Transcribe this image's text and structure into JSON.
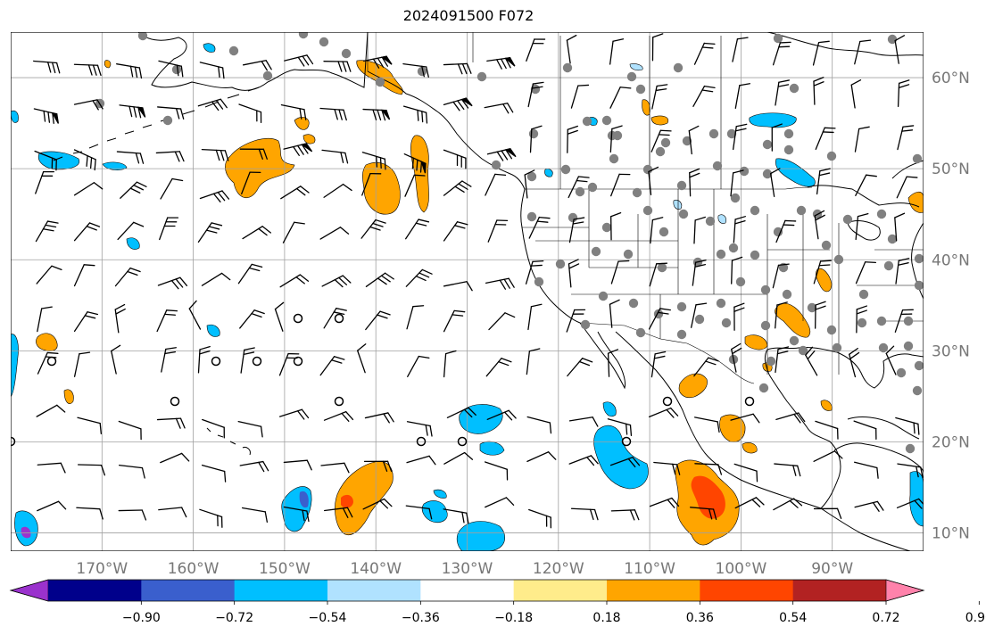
{
  "title": "2024091500 F072",
  "map": {
    "lon_range": [
      -180,
      -80
    ],
    "lat_range": [
      8,
      65
    ],
    "lon_ticks": [
      {
        "value": -170,
        "label": "170°W"
      },
      {
        "value": -160,
        "label": "160°W"
      },
      {
        "value": -150,
        "label": "150°W"
      },
      {
        "value": -140,
        "label": "140°W"
      },
      {
        "value": -130,
        "label": "130°W"
      },
      {
        "value": -120,
        "label": "120°W"
      },
      {
        "value": -110,
        "label": "110°W"
      },
      {
        "value": -100,
        "label": "100°W"
      },
      {
        "value": -90,
        "label": "90°W"
      }
    ],
    "lat_ticks": [
      {
        "value": 60,
        "label": "60°N"
      },
      {
        "value": 50,
        "label": "50°N"
      },
      {
        "value": 40,
        "label": "40°N"
      },
      {
        "value": 30,
        "label": "30°N"
      },
      {
        "value": 20,
        "label": "20°N"
      },
      {
        "value": 10,
        "label": "10°N"
      }
    ],
    "grid": true
  },
  "colorbar": {
    "colors": [
      "#9a32cd",
      "#00008b",
      "#3a5fcd",
      "#00bfff",
      "#b0e2ff",
      "#ffffff",
      "#ffec8b",
      "#ffa500",
      "#ff4500",
      "#b22222",
      "#ff82ab"
    ],
    "tick_labels": [
      "−0.90",
      "−0.72",
      "−0.54",
      "−0.36",
      "−0.18",
      "0.18",
      "0.36",
      "0.54",
      "0.72",
      "0.90"
    ],
    "extend": "both"
  },
  "colors": {
    "land_outline": "#000000",
    "station_marker": "#808080",
    "grid": "#a0a0a0"
  }
}
